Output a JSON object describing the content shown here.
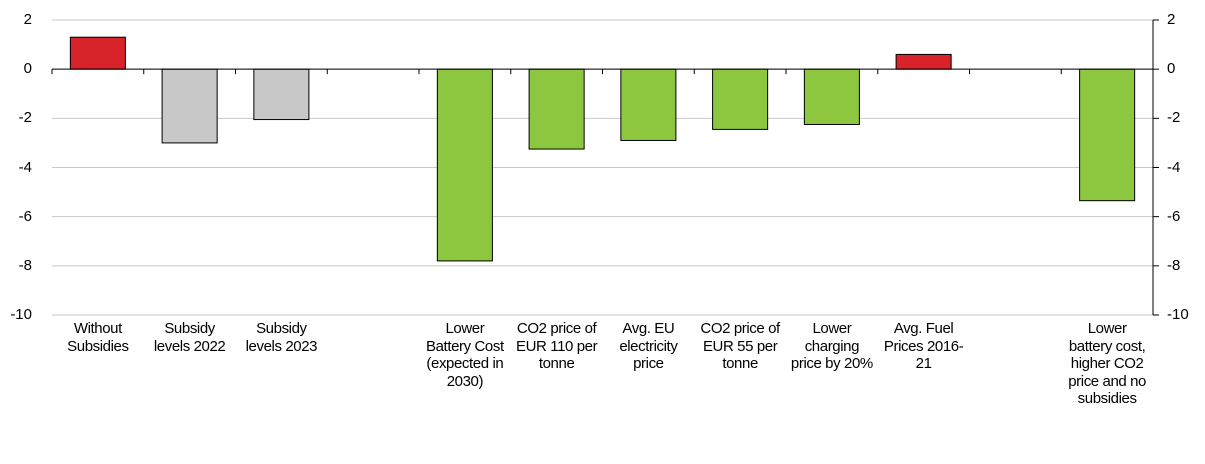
{
  "chart_data": {
    "type": "bar",
    "categories": [
      "Without Subsidies",
      "Subsidy levels 2022",
      "Subsidy levels 2023",
      null,
      "Lower Battery Cost (expected in 2030)",
      "CO2 price of EUR 110 per tonne",
      "Avg. EU electricity price",
      "CO2 price of EUR 55 per tonne",
      "Lower charging price by 20%",
      "Avg. Fuel Prices 2016-21",
      null,
      "Lower battery cost, higher CO2 price and no subsidies"
    ],
    "values": [
      1.3,
      -3.0,
      -2.05,
      null,
      -7.8,
      -3.25,
      -2.9,
      -2.45,
      -2.25,
      0.6,
      null,
      -5.35
    ],
    "colors": [
      "#d9232a",
      "#c8c8c8",
      "#c8c8c8",
      null,
      "#8dc63f",
      "#8dc63f",
      "#8dc63f",
      "#8dc63f",
      "#8dc63f",
      "#d9232a",
      null,
      "#8dc63f"
    ],
    "ylim": [
      -10,
      2
    ],
    "yticks": [
      2,
      0,
      -2,
      -4,
      -6,
      -8,
      -10
    ],
    "y2lim": [
      -10,
      2
    ],
    "y2ticks": [
      2,
      0,
      -2,
      -4,
      -6,
      -8,
      -10
    ],
    "grid": true
  }
}
